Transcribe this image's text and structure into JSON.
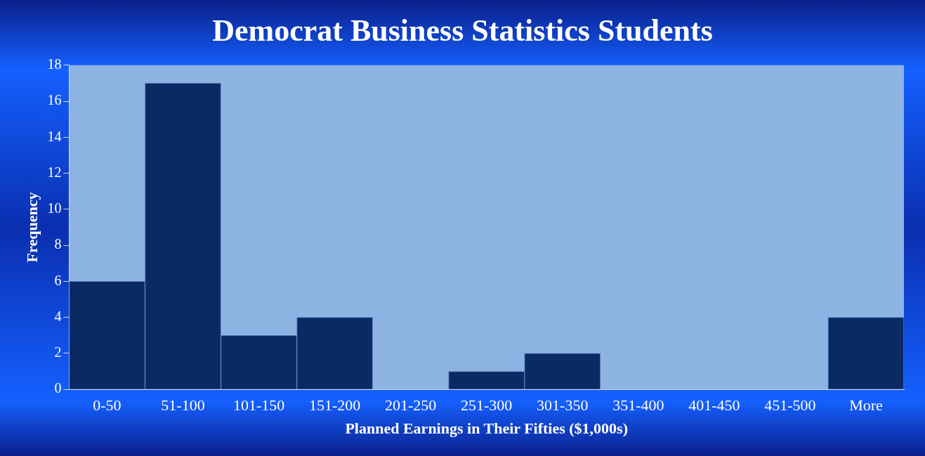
{
  "chart_data": {
    "type": "bar",
    "title": "Democrat Business Statistics Students",
    "xlabel": "Planned Earnings in Their Fifties ($1,000s)",
    "ylabel": "Frequency",
    "categories": [
      "0-50",
      "51-100",
      "101-150",
      "151-200",
      "201-250",
      "251-300",
      "301-350",
      "351-400",
      "401-450",
      "451-500",
      "More"
    ],
    "values": [
      6,
      17,
      3,
      4,
      0,
      1,
      2,
      0,
      0,
      0,
      4
    ],
    "color": "#0b2a63",
    "ylim": [
      0,
      18
    ],
    "yticks": [
      0,
      2,
      4,
      6,
      8,
      10,
      12,
      14,
      16,
      18
    ],
    "grid": false,
    "legend": false
  }
}
